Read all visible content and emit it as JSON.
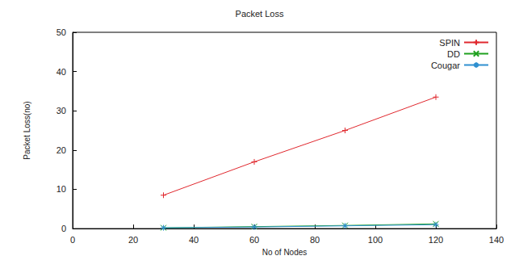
{
  "chart_data": {
    "type": "line",
    "title": "Packet Loss",
    "x_label": "No of Nodes",
    "y_label": "Packet Loss(no)",
    "x": [
      30,
      60,
      90,
      120
    ],
    "series": [
      {
        "name": "SPIN",
        "color": "#e0282e",
        "marker": "plus",
        "values": [
          8.5,
          17,
          25,
          33.5
        ]
      },
      {
        "name": "DD",
        "color": "#1fa01f",
        "marker": "cross",
        "values": [
          0.2,
          0.5,
          0.8,
          1.2
        ]
      },
      {
        "name": "Cougar",
        "color": "#2e8fd0",
        "marker": "star",
        "values": [
          0.2,
          0.4,
          0.7,
          1.0
        ]
      }
    ],
    "xlim": [
      0,
      140
    ],
    "xticks": [
      0,
      20,
      40,
      60,
      80,
      100,
      120,
      140
    ],
    "ylim": [
      0,
      50
    ],
    "yticks": [
      0,
      10,
      20,
      30,
      40,
      50
    ],
    "grid": false,
    "legend": "top-right"
  }
}
